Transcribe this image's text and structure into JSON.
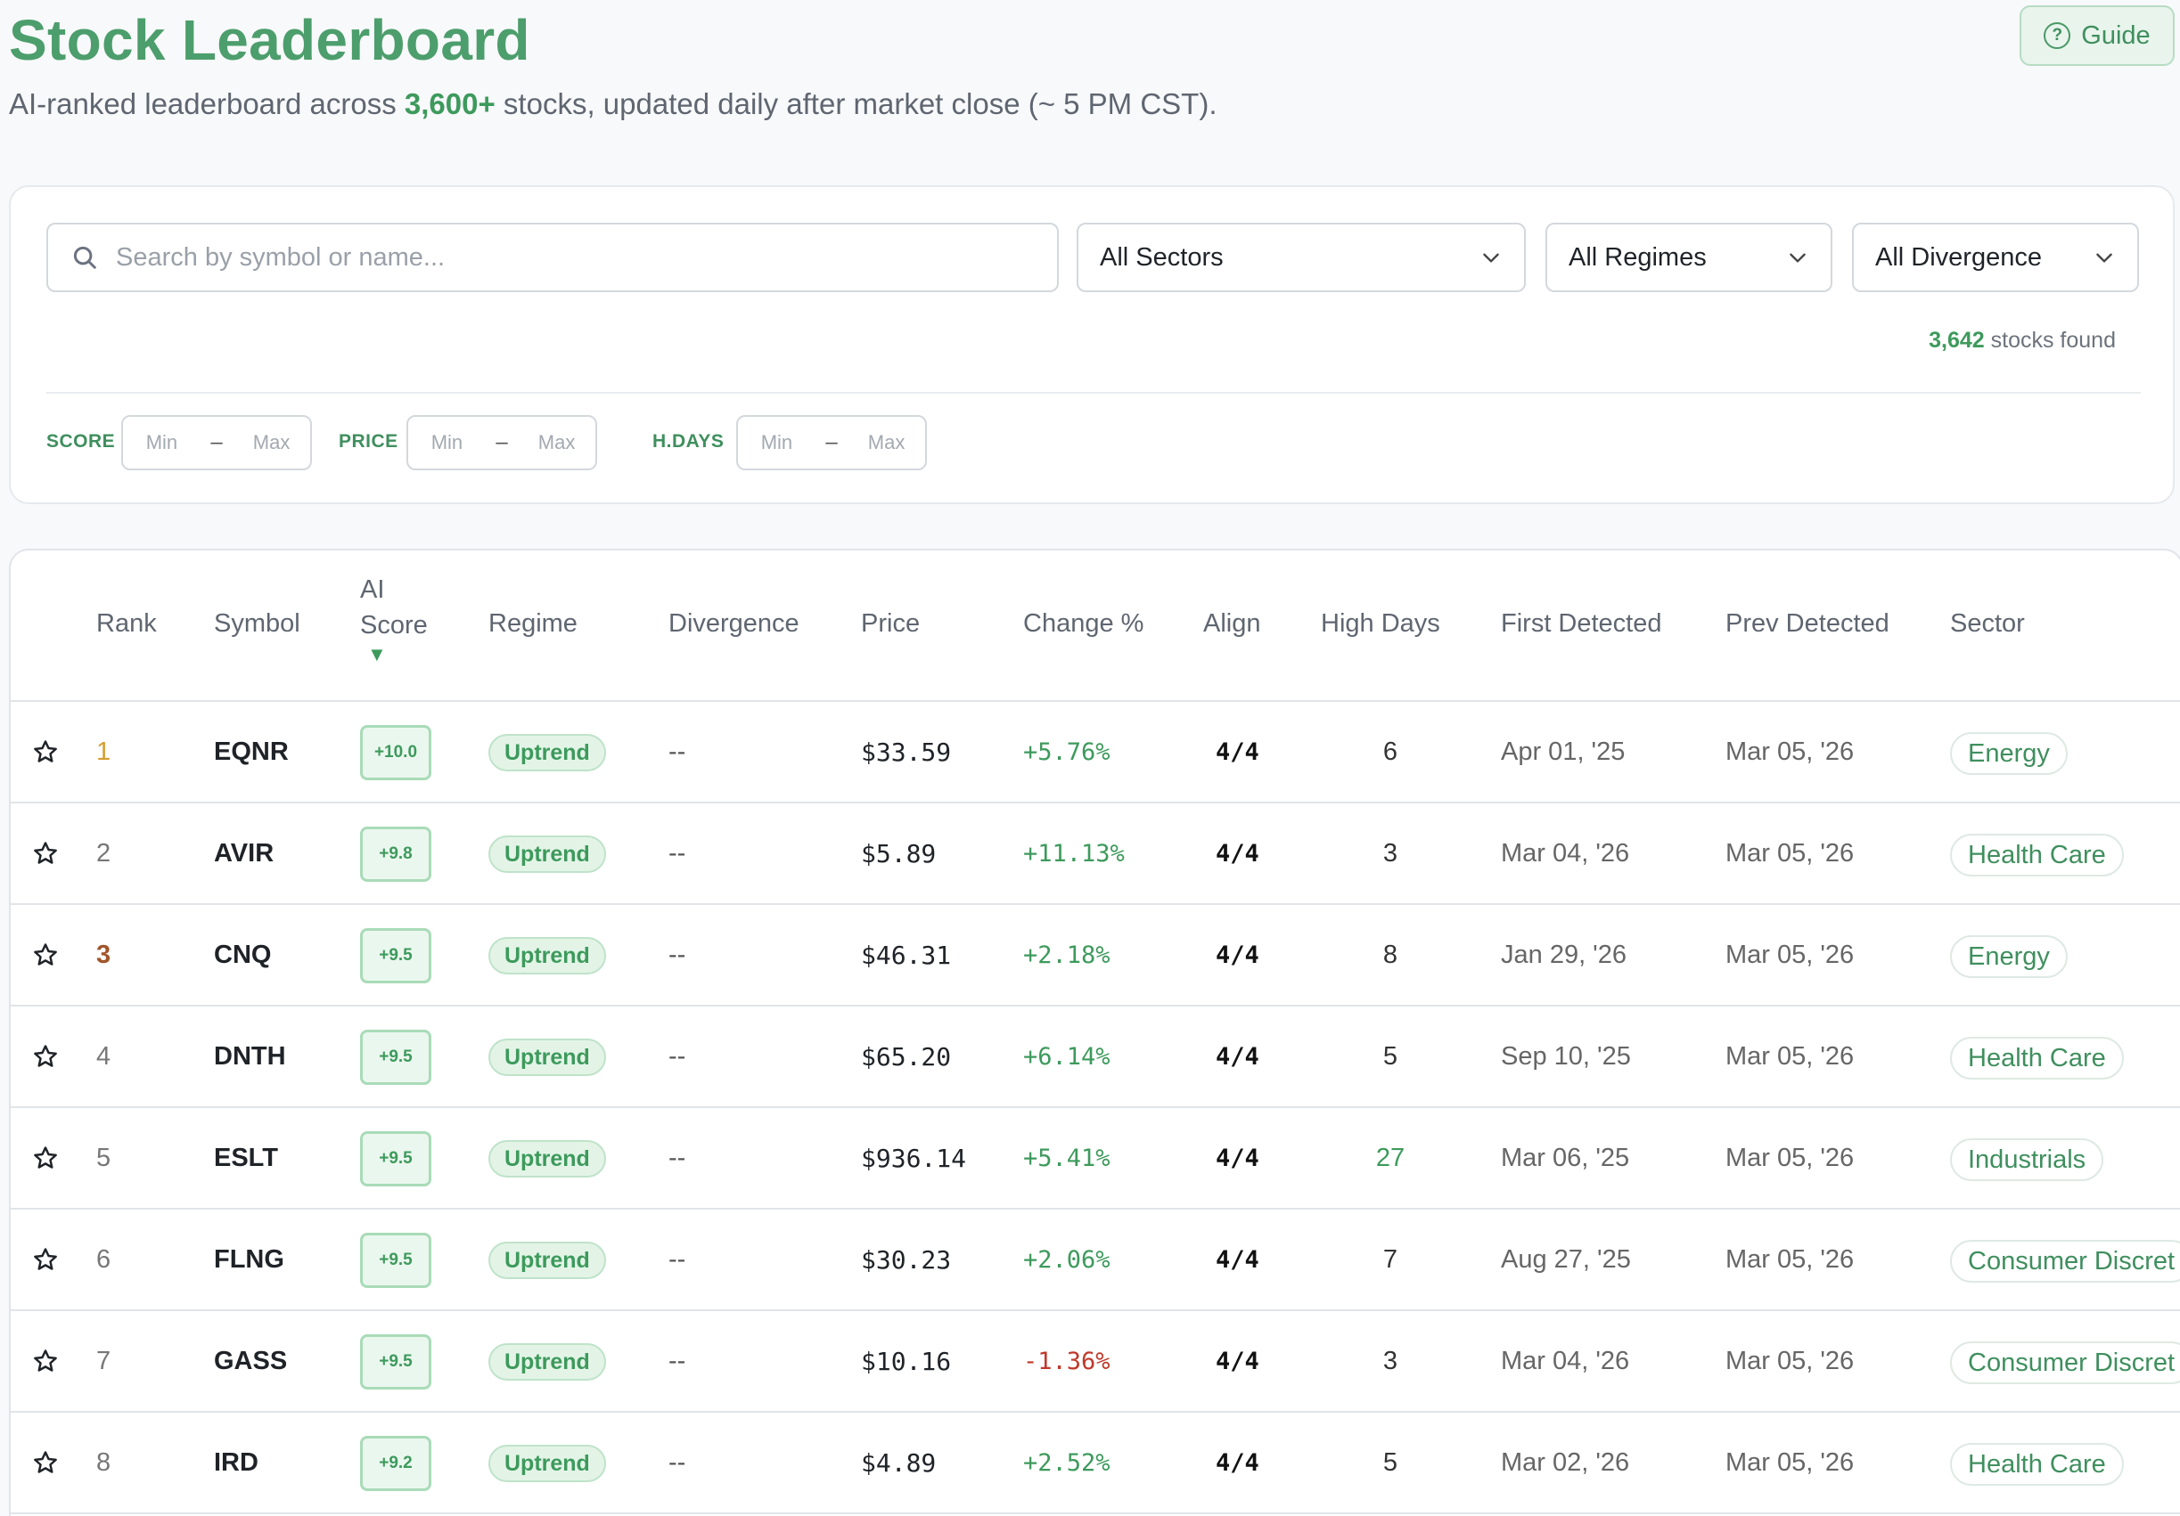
{
  "header": {
    "title": "Stock Leaderboard",
    "subtitle_prefix": "AI-ranked leaderboard across ",
    "subtitle_accent": "3,600+",
    "subtitle_suffix": " stocks, updated daily after market close (~ 5 PM CST).",
    "guide_label": "Guide",
    "guide_icon": "question-circle-icon"
  },
  "filters": {
    "search_placeholder": "Search by symbol or name...",
    "sectors": "All Sectors",
    "regimes": "All Regimes",
    "divergence": "All Divergence",
    "stocks_count": "3,642",
    "stocks_suffix": " stocks found",
    "ranges": [
      {
        "label": "SCORE",
        "min": "Min",
        "dash": "–",
        "max": "Max"
      },
      {
        "label": "PRICE",
        "min": "Min",
        "dash": "–",
        "max": "Max"
      },
      {
        "label": "H.DAYS",
        "min": "Min",
        "dash": "–",
        "max": "Max"
      }
    ]
  },
  "table": {
    "columns": {
      "rank": "Rank",
      "symbol": "Symbol",
      "ai_score_1": "AI",
      "ai_score_2": "Score",
      "sort_arrow": "▼",
      "regime": "Regime",
      "divergence": "Divergence",
      "price": "Price",
      "change": "Change %",
      "align": "Align",
      "high_days": "High Days",
      "first_detected": "First Detected",
      "prev_detected": "Prev Detected",
      "sector": "Sector"
    },
    "rows": [
      {
        "rank": "1",
        "symbol": "EQNR",
        "score": "+10.0",
        "regime": "Uptrend",
        "divergence": "--",
        "price": "$33.59",
        "change": "+5.76%",
        "align": "4/4",
        "high_days": "6",
        "first": "Apr 01, '25",
        "prev": "Mar 05, '26",
        "sector": "Energy"
      },
      {
        "rank": "2",
        "symbol": "AVIR",
        "score": "+9.8",
        "regime": "Uptrend",
        "divergence": "--",
        "price": "$5.89",
        "change": "+11.13%",
        "align": "4/4",
        "high_days": "3",
        "first": "Mar 04, '26",
        "prev": "Mar 05, '26",
        "sector": "Health Care"
      },
      {
        "rank": "3",
        "symbol": "CNQ",
        "score": "+9.5",
        "regime": "Uptrend",
        "divergence": "--",
        "price": "$46.31",
        "change": "+2.18%",
        "align": "4/4",
        "high_days": "8",
        "first": "Jan 29, '26",
        "prev": "Mar 05, '26",
        "sector": "Energy"
      },
      {
        "rank": "4",
        "symbol": "DNTH",
        "score": "+9.5",
        "regime": "Uptrend",
        "divergence": "--",
        "price": "$65.20",
        "change": "+6.14%",
        "align": "4/4",
        "high_days": "5",
        "first": "Sep 10, '25",
        "prev": "Mar 05, '26",
        "sector": "Health Care"
      },
      {
        "rank": "5",
        "symbol": "ESLT",
        "score": "+9.5",
        "regime": "Uptrend",
        "divergence": "--",
        "price": "$936.14",
        "change": "+5.41%",
        "align": "4/4",
        "high_days": "27",
        "first": "Mar 06, '25",
        "prev": "Mar 05, '26",
        "sector": "Industrials"
      },
      {
        "rank": "6",
        "symbol": "FLNG",
        "score": "+9.5",
        "regime": "Uptrend",
        "divergence": "--",
        "price": "$30.23",
        "change": "+2.06%",
        "align": "4/4",
        "high_days": "7",
        "first": "Aug 27, '25",
        "prev": "Mar 05, '26",
        "sector": "Consumer Discret"
      },
      {
        "rank": "7",
        "symbol": "GASS",
        "score": "+9.5",
        "regime": "Uptrend",
        "divergence": "--",
        "price": "$10.16",
        "change": "-1.36%",
        "align": "4/4",
        "high_days": "3",
        "first": "Mar 04, '26",
        "prev": "Mar 05, '26",
        "sector": "Consumer Discret"
      },
      {
        "rank": "8",
        "symbol": "IRD",
        "score": "+9.2",
        "regime": "Uptrend",
        "divergence": "--",
        "price": "$4.89",
        "change": "+2.52%",
        "align": "4/4",
        "high_days": "5",
        "first": "Mar 02, '26",
        "prev": "Mar 05, '26",
        "sector": "Health Care"
      }
    ]
  },
  "colors": {
    "accent": "#4c9e6c",
    "positive": "#3d9a5c",
    "negative": "#c0392b",
    "rank_gold": "#d69e2e",
    "rank_bronze": "#a0552a"
  },
  "icons": {
    "search": "search-icon",
    "chevron": "chevron-down-icon",
    "star": "star-outline-icon"
  }
}
